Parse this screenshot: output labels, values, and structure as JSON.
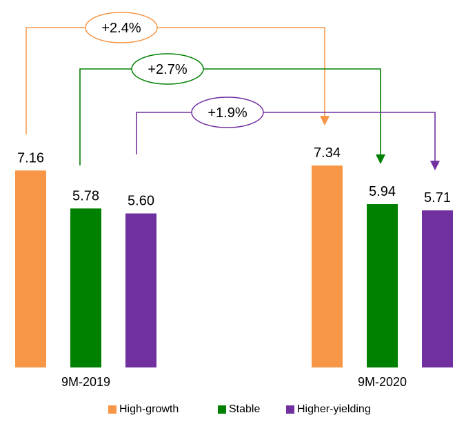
{
  "chart_data": {
    "type": "bar",
    "categories": [
      "9M-2019",
      "9M-2020"
    ],
    "series": [
      {
        "name": "High-growth",
        "color": "#f79646",
        "values": [
          7.16,
          7.34
        ]
      },
      {
        "name": "Stable",
        "color": "#008000",
        "values": [
          5.78,
          5.94
        ]
      },
      {
        "name": "Higher-yielding",
        "color": "#7030a0",
        "values": [
          5.6,
          5.71
        ]
      }
    ],
    "data_labels": [
      [
        "7.16",
        "7.34"
      ],
      [
        "5.78",
        "5.94"
      ],
      [
        "5.60",
        "5.71"
      ]
    ],
    "annotations": [
      {
        "series": "High-growth",
        "label": "+2.4%"
      },
      {
        "series": "Stable",
        "label": "+2.7%"
      },
      {
        "series": "Higher-yielding",
        "label": "+1.9%"
      }
    ],
    "title": "",
    "xlabel": "",
    "ylabel": "",
    "legend_position": "bottom",
    "grid": false,
    "y_axis_visible": false
  }
}
